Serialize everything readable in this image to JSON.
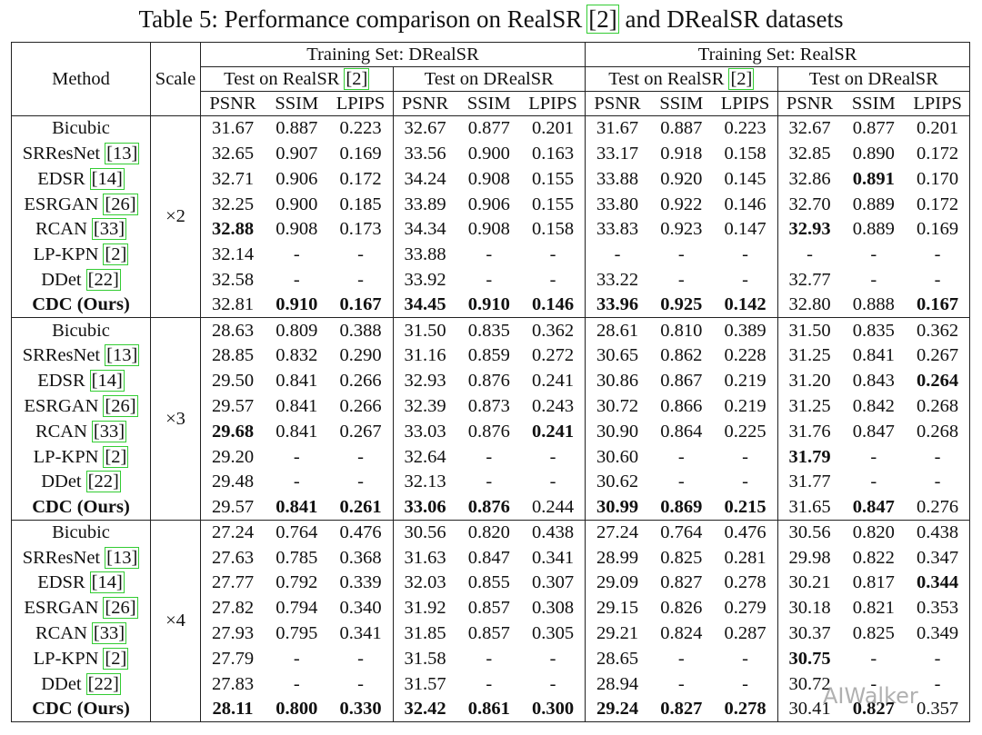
{
  "title": {
    "text": "Table 5: Performance comparison on RealSR",
    "ref": "[2]",
    "tail": "and DRealSR datasets"
  },
  "header": {
    "method": "Method",
    "scale": "Scale",
    "training_sets": [
      {
        "label": "Training Set: DRealSR",
        "tests": [
          {
            "label": "Test on RealSR",
            "ref": "[2]"
          },
          {
            "label": "Test on DRealSR"
          }
        ]
      },
      {
        "label": "Training Set: RealSR",
        "tests": [
          {
            "label": "Test on RealSR",
            "ref": "[2]"
          },
          {
            "label": "Test on DRealSR"
          }
        ]
      }
    ],
    "metrics": [
      "PSNR",
      "SSIM",
      "LPIPS"
    ]
  },
  "sections": [
    {
      "scale": "×2",
      "rows": [
        {
          "method": "Bicubic",
          "values": [
            "31.67",
            "0.887",
            "0.223",
            "32.67",
            "0.877",
            "0.201",
            "31.67",
            "0.887",
            "0.223",
            "32.67",
            "0.877",
            "0.201"
          ],
          "bold": []
        },
        {
          "method": "SRResNet",
          "ref": "[13]",
          "values": [
            "32.65",
            "0.907",
            "0.169",
            "33.56",
            "0.900",
            "0.163",
            "33.17",
            "0.918",
            "0.158",
            "32.85",
            "0.890",
            "0.172"
          ],
          "bold": []
        },
        {
          "method": "EDSR",
          "ref": "[14]",
          "values": [
            "32.71",
            "0.906",
            "0.172",
            "34.24",
            "0.908",
            "0.155",
            "33.88",
            "0.920",
            "0.145",
            "32.86",
            "0.891",
            "0.170"
          ],
          "bold": [
            10
          ]
        },
        {
          "method": "ESRGAN",
          "ref": "[26]",
          "values": [
            "32.25",
            "0.900",
            "0.185",
            "33.89",
            "0.906",
            "0.155",
            "33.80",
            "0.922",
            "0.146",
            "32.70",
            "0.889",
            "0.172"
          ],
          "bold": []
        },
        {
          "method": "RCAN",
          "ref": "[33]",
          "values": [
            "32.88",
            "0.908",
            "0.173",
            "34.34",
            "0.908",
            "0.158",
            "33.83",
            "0.923",
            "0.147",
            "32.93",
            "0.889",
            "0.169"
          ],
          "bold": [
            0,
            9
          ]
        },
        {
          "method": "LP-KPN",
          "ref": "[2]",
          "values": [
            "32.14",
            "-",
            "-",
            "33.88",
            "-",
            "-",
            "-",
            "-",
            "-",
            "-",
            "-",
            "-"
          ],
          "bold": []
        },
        {
          "method": "DDet",
          "ref": "[22]",
          "values": [
            "32.58",
            "-",
            "-",
            "33.92",
            "-",
            "-",
            "33.22",
            "-",
            "-",
            "32.77",
            "-",
            "-"
          ],
          "bold": []
        },
        {
          "method": "CDC (Ours)",
          "method_bold": true,
          "values": [
            "32.81",
            "0.910",
            "0.167",
            "34.45",
            "0.910",
            "0.146",
            "33.96",
            "0.925",
            "0.142",
            "32.80",
            "0.888",
            "0.167"
          ],
          "bold": [
            1,
            2,
            3,
            4,
            5,
            6,
            7,
            8,
            11
          ]
        }
      ]
    },
    {
      "scale": "×3",
      "rows": [
        {
          "method": "Bicubic",
          "values": [
            "28.63",
            "0.809",
            "0.388",
            "31.50",
            "0.835",
            "0.362",
            "28.61",
            "0.810",
            "0.389",
            "31.50",
            "0.835",
            "0.362"
          ],
          "bold": []
        },
        {
          "method": "SRResNet",
          "ref": "[13]",
          "values": [
            "28.85",
            "0.832",
            "0.290",
            "31.16",
            "0.859",
            "0.272",
            "30.65",
            "0.862",
            "0.228",
            "31.25",
            "0.841",
            "0.267"
          ],
          "bold": []
        },
        {
          "method": "EDSR",
          "ref": "[14]",
          "values": [
            "29.50",
            "0.841",
            "0.266",
            "32.93",
            "0.876",
            "0.241",
            "30.86",
            "0.867",
            "0.219",
            "31.20",
            "0.843",
            "0.264"
          ],
          "bold": [
            11
          ]
        },
        {
          "method": "ESRGAN",
          "ref": "[26]",
          "values": [
            "29.57",
            "0.841",
            "0.266",
            "32.39",
            "0.873",
            "0.243",
            "30.72",
            "0.866",
            "0.219",
            "31.25",
            "0.842",
            "0.268"
          ],
          "bold": []
        },
        {
          "method": "RCAN",
          "ref": "[33]",
          "values": [
            "29.68",
            "0.841",
            "0.267",
            "33.03",
            "0.876",
            "0.241",
            "30.90",
            "0.864",
            "0.225",
            "31.76",
            "0.847",
            "0.268"
          ],
          "bold": [
            0,
            5
          ]
        },
        {
          "method": "LP-KPN",
          "ref": "[2]",
          "values": [
            "29.20",
            "-",
            "-",
            "32.64",
            "-",
            "-",
            "30.60",
            "-",
            "-",
            "31.79",
            "-",
            "-"
          ],
          "bold": [
            9
          ]
        },
        {
          "method": "DDet",
          "ref": "[22]",
          "values": [
            "29.48",
            "-",
            "-",
            "32.13",
            "-",
            "-",
            "30.62",
            "-",
            "-",
            "31.77",
            "-",
            "-"
          ],
          "bold": []
        },
        {
          "method": "CDC (Ours)",
          "method_bold": true,
          "values": [
            "29.57",
            "0.841",
            "0.261",
            "33.06",
            "0.876",
            "0.244",
            "30.99",
            "0.869",
            "0.215",
            "31.65",
            "0.847",
            "0.276"
          ],
          "bold": [
            1,
            2,
            3,
            4,
            6,
            7,
            8,
            10
          ]
        }
      ]
    },
    {
      "scale": "×4",
      "rows": [
        {
          "method": "Bicubic",
          "values": [
            "27.24",
            "0.764",
            "0.476",
            "30.56",
            "0.820",
            "0.438",
            "27.24",
            "0.764",
            "0.476",
            "30.56",
            "0.820",
            "0.438"
          ],
          "bold": []
        },
        {
          "method": "SRResNet",
          "ref": "[13]",
          "values": [
            "27.63",
            "0.785",
            "0.368",
            "31.63",
            "0.847",
            "0.341",
            "28.99",
            "0.825",
            "0.281",
            "29.98",
            "0.822",
            "0.347"
          ],
          "bold": []
        },
        {
          "method": "EDSR",
          "ref": "[14]",
          "values": [
            "27.77",
            "0.792",
            "0.339",
            "32.03",
            "0.855",
            "0.307",
            "29.09",
            "0.827",
            "0.278",
            "30.21",
            "0.817",
            "0.344"
          ],
          "bold": [
            11
          ]
        },
        {
          "method": "ESRGAN",
          "ref": "[26]",
          "values": [
            "27.82",
            "0.794",
            "0.340",
            "31.92",
            "0.857",
            "0.308",
            "29.15",
            "0.826",
            "0.279",
            "30.18",
            "0.821",
            "0.353"
          ],
          "bold": []
        },
        {
          "method": "RCAN",
          "ref": "[33]",
          "values": [
            "27.93",
            "0.795",
            "0.341",
            "31.85",
            "0.857",
            "0.305",
            "29.21",
            "0.824",
            "0.287",
            "30.37",
            "0.825",
            "0.349"
          ],
          "bold": []
        },
        {
          "method": "LP-KPN",
          "ref": "[2]",
          "values": [
            "27.79",
            "-",
            "-",
            "31.58",
            "-",
            "-",
            "28.65",
            "-",
            "-",
            "30.75",
            "-",
            "-"
          ],
          "bold": [
            9
          ]
        },
        {
          "method": "DDet",
          "ref": "[22]",
          "values": [
            "27.83",
            "-",
            "-",
            "31.57",
            "-",
            "-",
            "28.94",
            "-",
            "-",
            "30.72",
            "-",
            "-"
          ],
          "bold": []
        },
        {
          "method": "CDC (Ours)",
          "method_bold": true,
          "values": [
            "28.11",
            "0.800",
            "0.330",
            "32.42",
            "0.861",
            "0.300",
            "29.24",
            "0.827",
            "0.278",
            "30.41",
            "0.827",
            "0.357"
          ],
          "bold": [
            0,
            1,
            2,
            3,
            4,
            5,
            6,
            7,
            8,
            10
          ]
        }
      ]
    }
  ],
  "watermark": "AIWalker"
}
